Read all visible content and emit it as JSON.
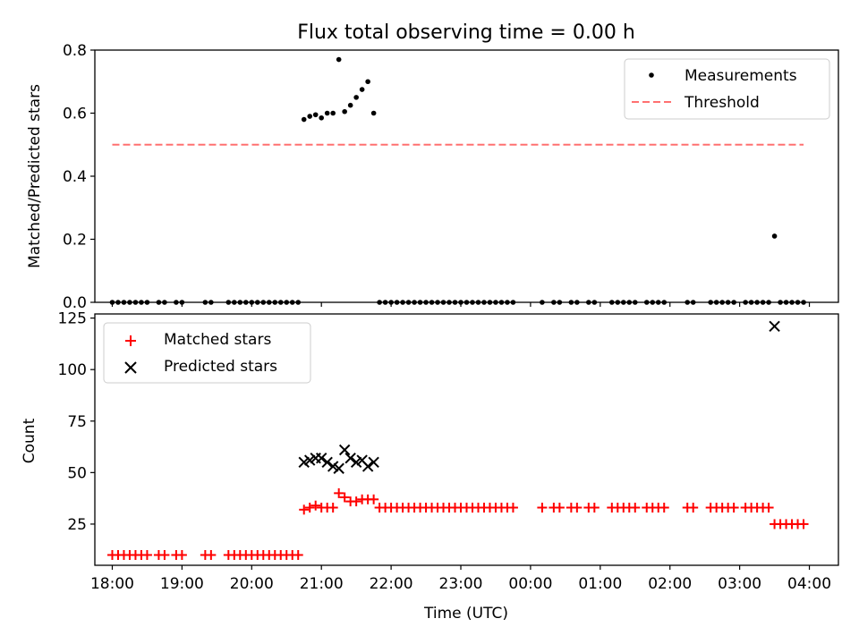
{
  "chart_data": [
    {
      "type": "scatter",
      "title": "Flux total observing time = 0.00 h",
      "xlabel": "",
      "ylabel": "Matched/Predicted stars",
      "ylim": [
        0,
        0.8
      ],
      "yticks": [
        "0.0",
        "0.2",
        "0.4",
        "0.6",
        "0.8"
      ],
      "xlim": [
        "17:45",
        "04:25"
      ],
      "legend_position": "top-right",
      "grid": false,
      "series": [
        {
          "name": "Measurements",
          "kind": "points",
          "color": "#000000",
          "x": [
            "18:00",
            "18:05",
            "18:10",
            "18:15",
            "18:20",
            "18:25",
            "18:30",
            "18:40",
            "18:45",
            "18:55",
            "19:00",
            "19:20",
            "19:25",
            "19:40",
            "19:45",
            "19:50",
            "19:55",
            "20:00",
            "20:05",
            "20:10",
            "20:15",
            "20:20",
            "20:25",
            "20:30",
            "20:35",
            "20:40",
            "20:45",
            "20:50",
            "20:55",
            "21:00",
            "21:05",
            "21:10",
            "21:15",
            "21:20",
            "21:25",
            "21:30",
            "21:35",
            "21:40",
            "21:45",
            "21:50",
            "21:55",
            "22:00",
            "22:05",
            "22:10",
            "22:15",
            "22:20",
            "22:25",
            "22:30",
            "22:35",
            "22:40",
            "22:45",
            "22:50",
            "22:55",
            "23:00",
            "23:05",
            "23:10",
            "23:15",
            "23:20",
            "23:25",
            "23:30",
            "23:35",
            "23:40",
            "23:45",
            "00:10",
            "00:20",
            "00:25",
            "00:35",
            "00:40",
            "00:50",
            "00:55",
            "01:10",
            "01:15",
            "01:20",
            "01:25",
            "01:30",
            "01:40",
            "01:45",
            "01:50",
            "01:55",
            "02:15",
            "02:20",
            "02:35",
            "02:40",
            "02:45",
            "02:50",
            "02:55",
            "03:05",
            "03:10",
            "03:15",
            "03:20",
            "03:25",
            "03:30",
            "03:35",
            "03:40",
            "03:45",
            "03:50",
            "03:55"
          ],
          "y": [
            0,
            0,
            0,
            0,
            0,
            0,
            0,
            0,
            0,
            0,
            0,
            0,
            0,
            0,
            0,
            0,
            0,
            0,
            0,
            0,
            0,
            0,
            0,
            0,
            0,
            0,
            0.58,
            0.59,
            0.595,
            0.585,
            0.6,
            0.6,
            0.77,
            0.605,
            0.625,
            0.65,
            0.675,
            0.7,
            0.6,
            0,
            0,
            0,
            0,
            0,
            0,
            0,
            0,
            0,
            0,
            0,
            0,
            0,
            0,
            0,
            0,
            0,
            0,
            0,
            0,
            0,
            0,
            0,
            0,
            0,
            0,
            0,
            0,
            0,
            0,
            0,
            0,
            0,
            0,
            0,
            0,
            0,
            0,
            0,
            0,
            0,
            0,
            0,
            0,
            0,
            0,
            0,
            0,
            0,
            0,
            0,
            0,
            0.21,
            0,
            0,
            0,
            0,
            0
          ]
        },
        {
          "name": "Threshold",
          "kind": "dashed-line",
          "color": "#ff7070",
          "x": [
            "18:00",
            "03:55"
          ],
          "y": [
            0.5,
            0.5
          ]
        }
      ]
    },
    {
      "type": "scatter",
      "title": "",
      "xlabel": "Time (UTC)",
      "ylabel": "Count",
      "ylim": [
        5,
        127
      ],
      "yticks": [
        "25",
        "50",
        "75",
        "100",
        "125"
      ],
      "xticks": [
        "18:00",
        "19:00",
        "20:00",
        "21:00",
        "22:00",
        "23:00",
        "00:00",
        "01:00",
        "02:00",
        "03:00",
        "04:00"
      ],
      "xlim": [
        "17:45",
        "04:25"
      ],
      "legend_position": "top-left",
      "grid": false,
      "series": [
        {
          "name": "Matched stars",
          "marker": "plus",
          "color": "#ff0000",
          "x": [
            "18:00",
            "18:05",
            "18:10",
            "18:15",
            "18:20",
            "18:25",
            "18:30",
            "18:40",
            "18:45",
            "18:55",
            "19:00",
            "19:20",
            "19:25",
            "19:40",
            "19:45",
            "19:50",
            "19:55",
            "20:00",
            "20:05",
            "20:10",
            "20:15",
            "20:20",
            "20:25",
            "20:30",
            "20:35",
            "20:40",
            "20:45",
            "20:50",
            "20:55",
            "21:00",
            "21:05",
            "21:10",
            "21:15",
            "21:20",
            "21:25",
            "21:30",
            "21:35",
            "21:40",
            "21:45",
            "21:50",
            "21:55",
            "22:00",
            "22:05",
            "22:10",
            "22:15",
            "22:20",
            "22:25",
            "22:30",
            "22:35",
            "22:40",
            "22:45",
            "22:50",
            "22:55",
            "23:00",
            "23:05",
            "23:10",
            "23:15",
            "23:20",
            "23:25",
            "23:30",
            "23:35",
            "23:40",
            "23:45",
            "00:10",
            "00:20",
            "00:25",
            "00:35",
            "00:40",
            "00:50",
            "00:55",
            "01:10",
            "01:15",
            "01:20",
            "01:25",
            "01:30",
            "01:40",
            "01:45",
            "01:50",
            "01:55",
            "02:15",
            "02:20",
            "02:35",
            "02:40",
            "02:45",
            "02:50",
            "02:55",
            "03:05",
            "03:10",
            "03:15",
            "03:20",
            "03:25",
            "03:30",
            "03:35",
            "03:40",
            "03:45",
            "03:50",
            "03:55"
          ],
          "y": [
            10,
            10,
            10,
            10,
            10,
            10,
            10,
            10,
            10,
            10,
            10,
            10,
            10,
            10,
            10,
            10,
            10,
            10,
            10,
            10,
            10,
            10,
            10,
            10,
            10,
            10,
            32,
            33,
            34,
            33,
            33,
            33,
            40,
            38,
            36,
            36,
            37,
            37,
            37,
            33,
            33,
            33,
            33,
            33,
            33,
            33,
            33,
            33,
            33,
            33,
            33,
            33,
            33,
            33,
            33,
            33,
            33,
            33,
            33,
            33,
            33,
            33,
            33,
            33,
            33,
            33,
            33,
            33,
            33,
            33,
            33,
            33,
            33,
            33,
            33,
            33,
            33,
            33,
            33,
            33,
            33,
            33,
            33,
            33,
            33,
            33,
            33,
            33,
            33,
            33,
            33,
            25,
            25,
            25,
            25,
            25,
            25
          ]
        },
        {
          "name": "Predicted stars",
          "marker": "x",
          "color": "#000000",
          "x": [
            "20:45",
            "20:50",
            "20:55",
            "21:00",
            "21:05",
            "21:10",
            "21:15",
            "21:20",
            "21:25",
            "21:30",
            "21:35",
            "21:40",
            "21:45",
            "03:30"
          ],
          "y": [
            55,
            56,
            57,
            57,
            55,
            53,
            52,
            61,
            57,
            55,
            56,
            53,
            55,
            121
          ]
        }
      ]
    }
  ]
}
